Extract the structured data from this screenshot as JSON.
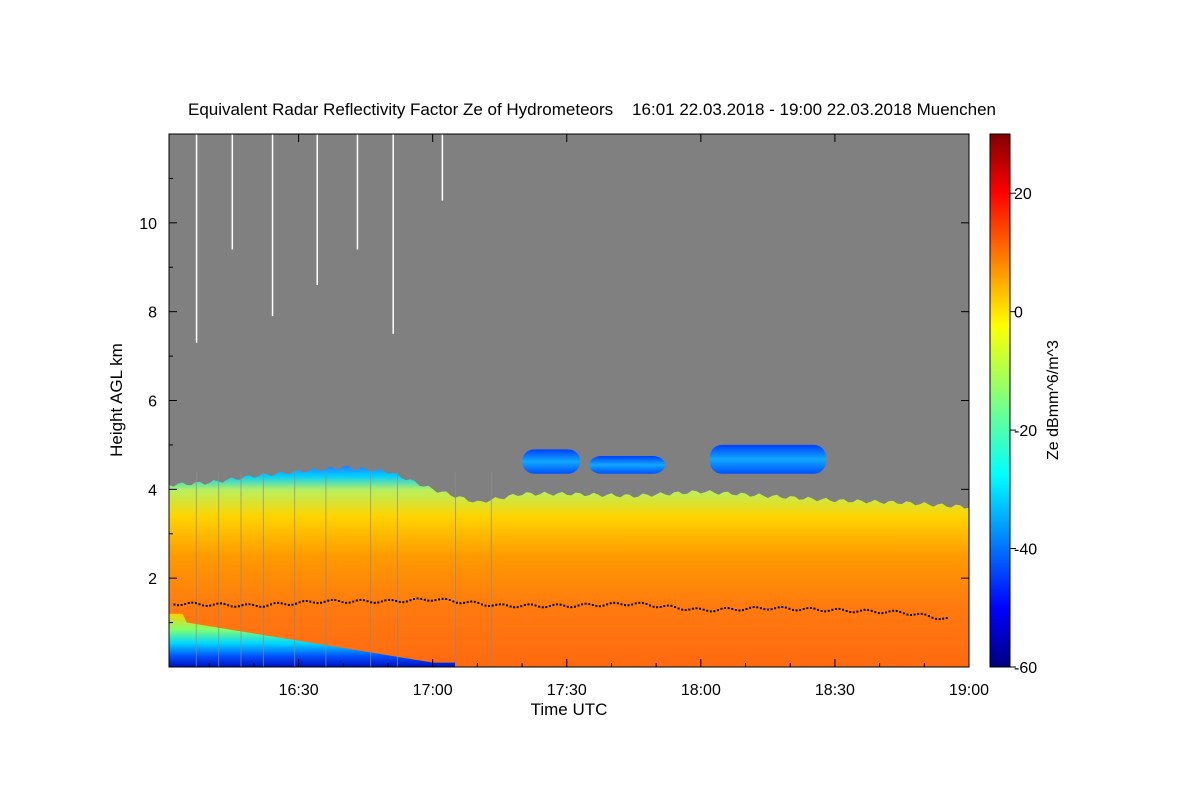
{
  "chart_data": {
    "type": "heatmap",
    "title": "Equivalent Radar Reflectivity Factor Ze of Hydrometeors    16:01 22.03.2018 - 19:00 22.03.2018 Muenchen",
    "xlabel": "Time UTC",
    "ylabel": "Height AGL km",
    "xlim": [
      "16:01",
      "19:00"
    ],
    "ylim": [
      0,
      12
    ],
    "x_ticks": [
      "16:30",
      "17:00",
      "17:30",
      "18:00",
      "18:30",
      "19:00"
    ],
    "y_ticks": [
      "2",
      "4",
      "6",
      "8",
      "10"
    ],
    "colorbar": {
      "label": "Ze dBmm^6/m^3",
      "range": [
        -60,
        30
      ],
      "ticks": [
        "20",
        "0",
        "-20",
        "-40",
        "-60"
      ],
      "colormap": "jet"
    },
    "background_color": "#808080",
    "cloud_top_km": [
      {
        "t": "16:01",
        "h": 4.1
      },
      {
        "t": "16:10",
        "h": 4.15
      },
      {
        "t": "16:20",
        "h": 4.3
      },
      {
        "t": "16:30",
        "h": 4.4
      },
      {
        "t": "16:40",
        "h": 4.5
      },
      {
        "t": "16:50",
        "h": 4.4
      },
      {
        "t": "17:00",
        "h": 4.0
      },
      {
        "t": "17:10",
        "h": 3.7
      },
      {
        "t": "17:20",
        "h": 3.9
      },
      {
        "t": "17:30",
        "h": 3.9
      },
      {
        "t": "17:45",
        "h": 3.85
      },
      {
        "t": "18:00",
        "h": 3.95
      },
      {
        "t": "18:15",
        "h": 3.85
      },
      {
        "t": "18:30",
        "h": 3.75
      },
      {
        "t": "18:45",
        "h": 3.7
      },
      {
        "t": "19:00",
        "h": 3.6
      }
    ],
    "upper_layer_patches": [
      {
        "start": "17:20",
        "end": "17:33",
        "base_km": 4.35,
        "top_km": 4.9
      },
      {
        "start": "17:35",
        "end": "17:52",
        "base_km": 4.35,
        "top_km": 4.75
      },
      {
        "start": "18:02",
        "end": "18:28",
        "base_km": 4.35,
        "top_km": 5.0
      }
    ],
    "melting_layer_km": [
      {
        "t": "16:02",
        "h": 1.45
      },
      {
        "t": "16:20",
        "h": 1.4
      },
      {
        "t": "16:35",
        "h": 1.5
      },
      {
        "t": "16:50",
        "h": 1.5
      },
      {
        "t": "17:00",
        "h": 1.55
      },
      {
        "t": "17:15",
        "h": 1.4
      },
      {
        "t": "17:30",
        "h": 1.4
      },
      {
        "t": "17:45",
        "h": 1.45
      },
      {
        "t": "18:00",
        "h": 1.3
      },
      {
        "t": "18:15",
        "h": 1.35
      },
      {
        "t": "18:30",
        "h": 1.3
      },
      {
        "t": "18:45",
        "h": 1.25
      },
      {
        "t": "18:55",
        "h": 1.1
      }
    ]
  }
}
